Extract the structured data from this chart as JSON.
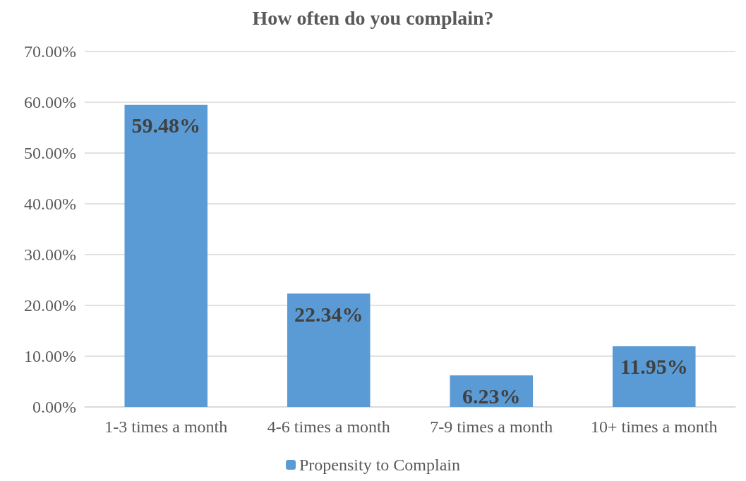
{
  "chart_data": {
    "type": "bar",
    "title": "How often do you complain?",
    "categories": [
      "1-3 times a month",
      "4-6 times a month",
      "7-9 times a month",
      "10+ times a month"
    ],
    "series": [
      {
        "name": "Propensity to Complain",
        "color": "#5b9bd5",
        "values": [
          59.48,
          22.34,
          6.23,
          11.95
        ],
        "value_labels": [
          "59.48%",
          "22.34%",
          "6.23%",
          "11.95%"
        ]
      }
    ],
    "ylim": [
      0,
      70
    ],
    "yticks": [
      {
        "value": 0,
        "label": "0.00%"
      },
      {
        "value": 10,
        "label": "10.00%"
      },
      {
        "value": 20,
        "label": "20.00%"
      },
      {
        "value": 30,
        "label": "30.00%"
      },
      {
        "value": 40,
        "label": "40.00%"
      },
      {
        "value": 50,
        "label": "50.00%"
      },
      {
        "value": 60,
        "label": "60.00%"
      },
      {
        "value": 70,
        "label": "70.00%"
      }
    ],
    "grid": "y",
    "legend": "bottom"
  }
}
